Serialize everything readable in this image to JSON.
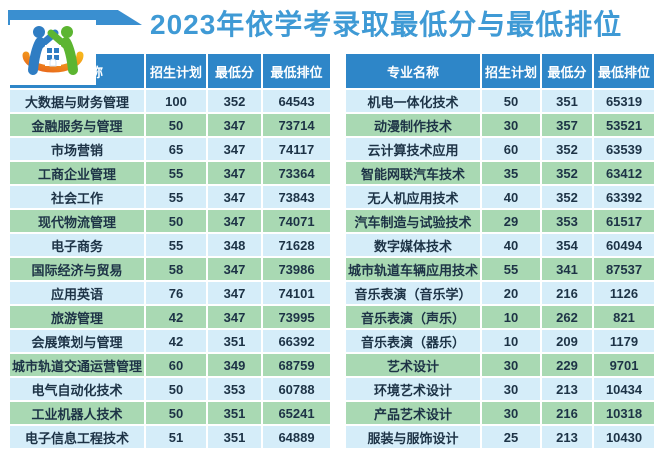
{
  "page": {
    "title": "2023年依学考录取最低分与最低排位"
  },
  "colors": {
    "title_blue": "#3f9ad5",
    "ribbon_blue": "#3a8fd0",
    "header_bg": "#2e86c8",
    "header_text": "#ffffff",
    "row_blue": "#d5edf9",
    "row_green": "#a9d9b3",
    "cell_text": "#1d3346"
  },
  "logo": {
    "name": "school-logo",
    "description": "two figures (blue and green) forming a house with orange swoosh"
  },
  "tables": {
    "columns": [
      "专业名称",
      "招生计划",
      "最低分",
      "最低排位"
    ],
    "left": {
      "rows": [
        [
          "大数据与财务管理",
          "100",
          "352",
          "64543"
        ],
        [
          "金融服务与管理",
          "50",
          "347",
          "73714"
        ],
        [
          "市场营销",
          "65",
          "347",
          "74117"
        ],
        [
          "工商企业管理",
          "55",
          "347",
          "73364"
        ],
        [
          "社会工作",
          "55",
          "347",
          "73843"
        ],
        [
          "现代物流管理",
          "50",
          "347",
          "74071"
        ],
        [
          "电子商务",
          "55",
          "348",
          "71628"
        ],
        [
          "国际经济与贸易",
          "58",
          "347",
          "73986"
        ],
        [
          "应用英语",
          "76",
          "347",
          "74101"
        ],
        [
          "旅游管理",
          "42",
          "347",
          "73995"
        ],
        [
          "会展策划与管理",
          "42",
          "351",
          "66392"
        ],
        [
          "城市轨道交通运营管理",
          "60",
          "349",
          "68759"
        ],
        [
          "电气自动化技术",
          "50",
          "353",
          "60788"
        ],
        [
          "工业机器人技术",
          "50",
          "351",
          "65241"
        ],
        [
          "电子信息工程技术",
          "51",
          "351",
          "64889"
        ]
      ]
    },
    "right": {
      "rows": [
        [
          "机电一体化技术",
          "50",
          "351",
          "65319"
        ],
        [
          "动漫制作技术",
          "30",
          "357",
          "53521"
        ],
        [
          "云计算技术应用",
          "60",
          "352",
          "63539"
        ],
        [
          "智能网联汽车技术",
          "35",
          "352",
          "63412"
        ],
        [
          "无人机应用技术",
          "40",
          "352",
          "63392"
        ],
        [
          "汽车制造与试验技术",
          "29",
          "353",
          "61517"
        ],
        [
          "数字媒体技术",
          "40",
          "354",
          "60494"
        ],
        [
          "城市轨道车辆应用技术",
          "55",
          "341",
          "87537"
        ],
        [
          "音乐表演（音乐学）",
          "20",
          "216",
          "1126"
        ],
        [
          "音乐表演（声乐）",
          "10",
          "262",
          "821"
        ],
        [
          "音乐表演（器乐）",
          "10",
          "209",
          "1179"
        ],
        [
          "艺术设计",
          "30",
          "229",
          "9701"
        ],
        [
          "环境艺术设计",
          "30",
          "213",
          "10434"
        ],
        [
          "产品艺术设计",
          "30",
          "216",
          "10318"
        ],
        [
          "服装与服饰设计",
          "25",
          "213",
          "10430"
        ]
      ]
    }
  }
}
